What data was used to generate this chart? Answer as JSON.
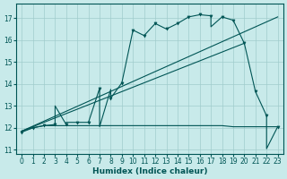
{
  "bg_color": "#c8eaea",
  "grid_color": "#a0cccc",
  "line_color": "#005555",
  "xlabel": "Humidex (Indice chaleur)",
  "xlim": [
    -0.5,
    23.5
  ],
  "ylim": [
    10.8,
    17.65
  ],
  "yticks": [
    11,
    12,
    13,
    14,
    15,
    16,
    17
  ],
  "xticks": [
    0,
    1,
    2,
    3,
    4,
    5,
    6,
    7,
    8,
    9,
    10,
    11,
    12,
    13,
    14,
    15,
    16,
    17,
    18,
    19,
    20,
    21,
    22,
    23
  ],
  "jagged_x": [
    0,
    1,
    2,
    3,
    3,
    4,
    4,
    5,
    6,
    7,
    7,
    8,
    8,
    9,
    10,
    11,
    12,
    13,
    14,
    15,
    16,
    17,
    17,
    18,
    19,
    20,
    21,
    22,
    22,
    23
  ],
  "jagged_y": [
    11.8,
    12.0,
    12.1,
    12.15,
    13.0,
    12.15,
    12.25,
    12.25,
    12.25,
    13.8,
    12.05,
    13.75,
    13.35,
    14.05,
    16.45,
    16.2,
    16.75,
    16.5,
    16.75,
    17.05,
    17.15,
    17.1,
    16.6,
    17.05,
    16.9,
    15.85,
    13.65,
    12.55,
    11.05,
    12.05
  ],
  "flat_x": [
    0,
    1,
    2,
    3,
    4,
    5,
    6,
    7,
    8,
    9,
    10,
    11,
    12,
    13,
    14,
    15,
    16,
    17,
    18,
    19,
    20,
    21,
    22,
    23
  ],
  "flat_y": [
    11.85,
    12.0,
    12.1,
    12.1,
    12.1,
    12.1,
    12.1,
    12.1,
    12.1,
    12.1,
    12.1,
    12.1,
    12.1,
    12.1,
    12.1,
    12.1,
    12.1,
    12.1,
    12.1,
    12.05,
    12.05,
    12.05,
    12.05,
    12.05
  ],
  "trend1_x": [
    0,
    20
  ],
  "trend1_y": [
    11.85,
    15.85
  ],
  "trend2_x": [
    0,
    23
  ],
  "trend2_y": [
    11.85,
    17.05
  ],
  "marker_x": [
    0,
    1,
    2,
    3,
    4,
    5,
    6,
    7,
    8,
    9,
    10,
    11,
    12,
    13,
    14,
    15,
    16,
    17,
    18,
    19,
    20,
    21,
    22,
    23
  ],
  "marker_y": [
    11.8,
    12.0,
    12.1,
    12.15,
    12.15,
    12.25,
    12.25,
    13.8,
    13.35,
    14.05,
    16.45,
    16.2,
    16.75,
    16.5,
    16.75,
    17.05,
    17.15,
    17.1,
    17.05,
    16.9,
    15.85,
    13.65,
    12.55,
    12.05
  ]
}
